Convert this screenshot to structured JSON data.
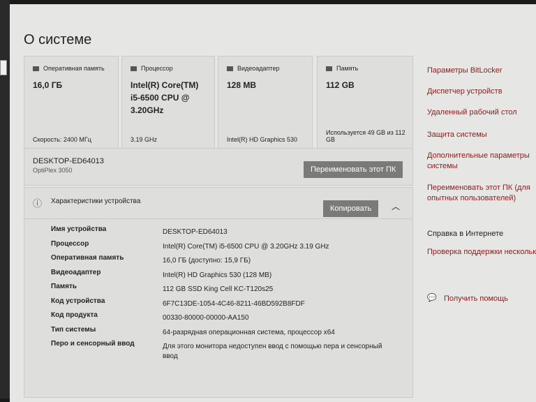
{
  "title": "О системе",
  "cards": [
    {
      "icon": "ram-icon",
      "label": "Оперативная память",
      "value": "16,0 ГБ",
      "footer": "Скорость: 2400 МГц"
    },
    {
      "icon": "cpu-icon",
      "label": "Процессор",
      "value": "Intel(R) Core(TM) i5-6500 CPU @ 3.20GHz",
      "footer": "3.19 GHz"
    },
    {
      "icon": "gpu-icon",
      "label": "Видеоадаптер",
      "value": "128 MB",
      "footer": "Intel(R) HD Graphics 530"
    },
    {
      "icon": "storage-icon",
      "label": "Память",
      "value": "112 GB",
      "footer": "Используется 49 GB из 112 GB"
    }
  ],
  "device": {
    "name": "DESKTOP-ED64013",
    "model": "OptiPlex 3050",
    "rename_label": "Переименовать этот ПК"
  },
  "specs": {
    "title": "Характеристики устройства",
    "copy_label": "Копировать",
    "rows": [
      {
        "label": "Имя устройства",
        "value": "DESKTOP-ED64013"
      },
      {
        "label": "Процессор",
        "value": "Intel(R) Core(TM) i5-6500 CPU @ 3.20GHz   3.19 GHz"
      },
      {
        "label": "Оперативная память",
        "value": "16,0 ГБ (доступно: 15,9 ГБ)"
      },
      {
        "label": "Видеоадаптер",
        "value": "Intel(R) HD Graphics 530 (128 MB)"
      },
      {
        "label": "Память",
        "value": "112 GB SSD King Cell KC-T120s25"
      },
      {
        "label": "Код устройства",
        "value": "6F7C13DE-1054-4C46-8211-46BD592B8FDF"
      },
      {
        "label": "Код продукта",
        "value": "00330-80000-00000-AA150"
      },
      {
        "label": "Тип системы",
        "value": "64-разрядная операционная система, процессор x64"
      },
      {
        "label": "Перо и сенсорный ввод",
        "value": "Для этого монитора недоступен ввод с помощью пера и сенсорный ввод"
      }
    ]
  },
  "links": [
    "Параметры BitLocker",
    "Диспетчер устройств",
    "Удаленный рабочий стол",
    "Защита системы",
    "Дополнительные параметры системы",
    "Переименовать этот ПК (для опытных пользователей)"
  ],
  "help": {
    "title": "Справка в Интернете",
    "link": "Проверка поддержки нескольких языков",
    "get_help": "Получить помощь"
  }
}
